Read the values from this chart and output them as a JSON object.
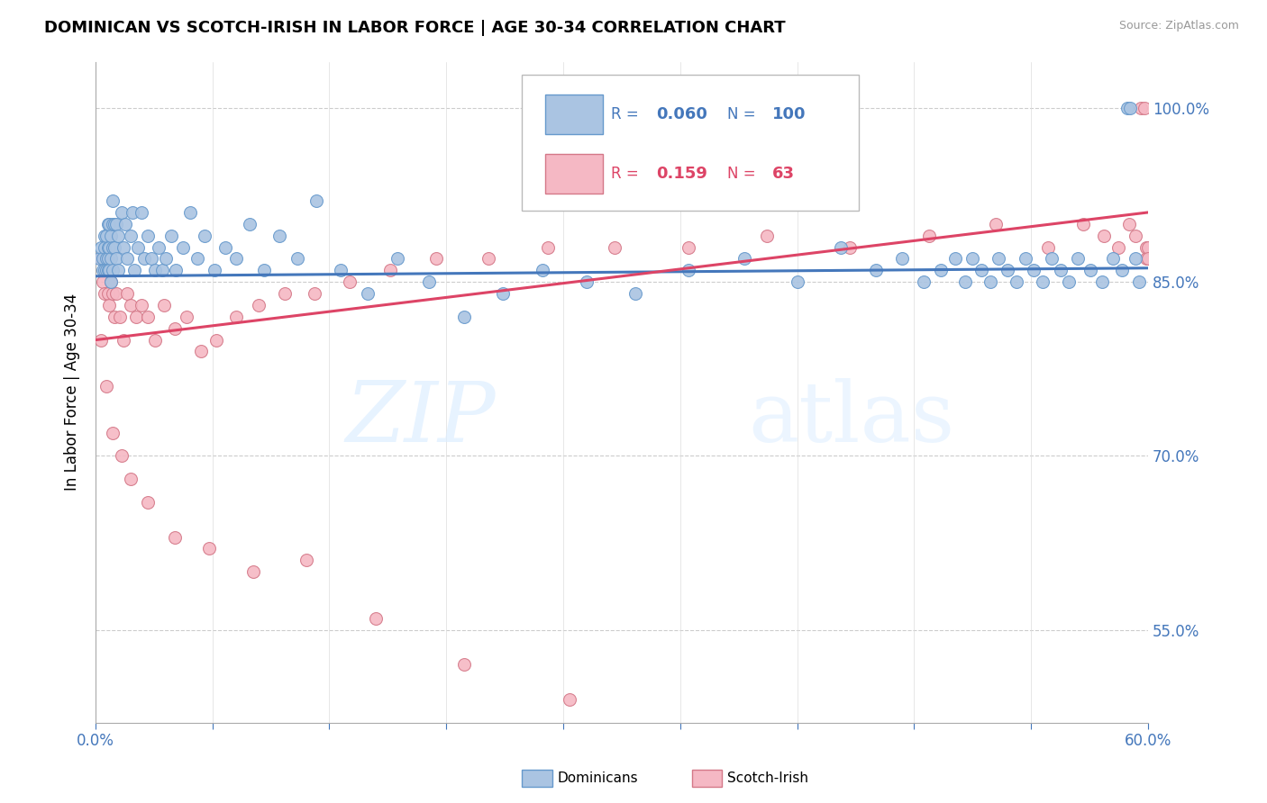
{
  "title": "DOMINICAN VS SCOTCH-IRISH IN LABOR FORCE | AGE 30-34 CORRELATION CHART",
  "source": "Source: ZipAtlas.com",
  "ylabel": "In Labor Force | Age 30-34",
  "right_yticks": [
    55.0,
    70.0,
    85.0,
    100.0
  ],
  "xlim": [
    0.0,
    0.6
  ],
  "ylim": [
    0.47,
    1.04
  ],
  "dominican_color": "#aac4e2",
  "dominican_edge": "#6699cc",
  "scotch_color": "#f5b8c4",
  "scotch_edge": "#d47888",
  "trendline_blue": "#4477bb",
  "trendline_pink": "#dd4466",
  "watermark_zip": "ZIP",
  "watermark_atlas": "atlas",
  "dom_x": [
    0.002,
    0.003,
    0.004,
    0.004,
    0.005,
    0.005,
    0.005,
    0.006,
    0.006,
    0.006,
    0.007,
    0.007,
    0.007,
    0.007,
    0.008,
    0.008,
    0.008,
    0.009,
    0.009,
    0.009,
    0.01,
    0.01,
    0.01,
    0.01,
    0.011,
    0.011,
    0.012,
    0.012,
    0.013,
    0.013,
    0.015,
    0.016,
    0.017,
    0.018,
    0.02,
    0.021,
    0.022,
    0.024,
    0.026,
    0.028,
    0.03,
    0.032,
    0.034,
    0.036,
    0.038,
    0.04,
    0.043,
    0.046,
    0.05,
    0.054,
    0.058,
    0.062,
    0.068,
    0.074,
    0.08,
    0.088,
    0.096,
    0.105,
    0.115,
    0.126,
    0.14,
    0.155,
    0.172,
    0.19,
    0.21,
    0.232,
    0.255,
    0.28,
    0.308,
    0.338,
    0.37,
    0.4,
    0.425,
    0.445,
    0.46,
    0.472,
    0.482,
    0.49,
    0.496,
    0.5,
    0.505,
    0.51,
    0.515,
    0.52,
    0.525,
    0.53,
    0.535,
    0.54,
    0.545,
    0.55,
    0.555,
    0.56,
    0.567,
    0.574,
    0.58,
    0.585,
    0.588,
    0.59,
    0.593,
    0.595
  ],
  "dom_y": [
    0.87,
    0.88,
    0.87,
    0.86,
    0.89,
    0.88,
    0.86,
    0.89,
    0.87,
    0.86,
    0.9,
    0.88,
    0.87,
    0.86,
    0.9,
    0.88,
    0.86,
    0.89,
    0.87,
    0.85,
    0.92,
    0.9,
    0.88,
    0.86,
    0.9,
    0.88,
    0.9,
    0.87,
    0.89,
    0.86,
    0.91,
    0.88,
    0.9,
    0.87,
    0.89,
    0.91,
    0.86,
    0.88,
    0.91,
    0.87,
    0.89,
    0.87,
    0.86,
    0.88,
    0.86,
    0.87,
    0.89,
    0.86,
    0.88,
    0.91,
    0.87,
    0.89,
    0.86,
    0.88,
    0.87,
    0.9,
    0.86,
    0.89,
    0.87,
    0.92,
    0.86,
    0.84,
    0.87,
    0.85,
    0.82,
    0.84,
    0.86,
    0.85,
    0.84,
    0.86,
    0.87,
    0.85,
    0.88,
    0.86,
    0.87,
    0.85,
    0.86,
    0.87,
    0.85,
    0.87,
    0.86,
    0.85,
    0.87,
    0.86,
    0.85,
    0.87,
    0.86,
    0.85,
    0.87,
    0.86,
    0.85,
    0.87,
    0.86,
    0.85,
    0.87,
    0.86,
    1.0,
    1.0,
    0.87,
    0.85
  ],
  "si_x": [
    0.003,
    0.004,
    0.005,
    0.006,
    0.007,
    0.008,
    0.009,
    0.01,
    0.011,
    0.012,
    0.014,
    0.016,
    0.018,
    0.02,
    0.023,
    0.026,
    0.03,
    0.034,
    0.039,
    0.045,
    0.052,
    0.06,
    0.069,
    0.08,
    0.093,
    0.108,
    0.125,
    0.145,
    0.168,
    0.194,
    0.224,
    0.258,
    0.296,
    0.338,
    0.383,
    0.43,
    0.475,
    0.513,
    0.543,
    0.563,
    0.575,
    0.583,
    0.589,
    0.593,
    0.596,
    0.598,
    0.599,
    0.599,
    0.6,
    0.6,
    0.003,
    0.006,
    0.01,
    0.015,
    0.02,
    0.03,
    0.045,
    0.065,
    0.09,
    0.12,
    0.16,
    0.21,
    0.27
  ],
  "si_y": [
    0.87,
    0.85,
    0.84,
    0.86,
    0.84,
    0.83,
    0.85,
    0.84,
    0.82,
    0.84,
    0.82,
    0.8,
    0.84,
    0.83,
    0.82,
    0.83,
    0.82,
    0.8,
    0.83,
    0.81,
    0.82,
    0.79,
    0.8,
    0.82,
    0.83,
    0.84,
    0.84,
    0.85,
    0.86,
    0.87,
    0.87,
    0.88,
    0.88,
    0.88,
    0.89,
    0.88,
    0.89,
    0.9,
    0.88,
    0.9,
    0.89,
    0.88,
    0.9,
    0.89,
    1.0,
    1.0,
    0.88,
    0.87,
    0.88,
    0.87,
    0.8,
    0.76,
    0.72,
    0.7,
    0.68,
    0.66,
    0.63,
    0.62,
    0.6,
    0.61,
    0.56,
    0.52,
    0.49
  ],
  "blue_trend_x0": 0.0,
  "blue_trend_x1": 0.6,
  "blue_trend_y0": 0.855,
  "blue_trend_y1": 0.862,
  "pink_trend_x0": 0.0,
  "pink_trend_x1": 0.6,
  "pink_trend_y0": 0.8,
  "pink_trend_y1": 0.91
}
